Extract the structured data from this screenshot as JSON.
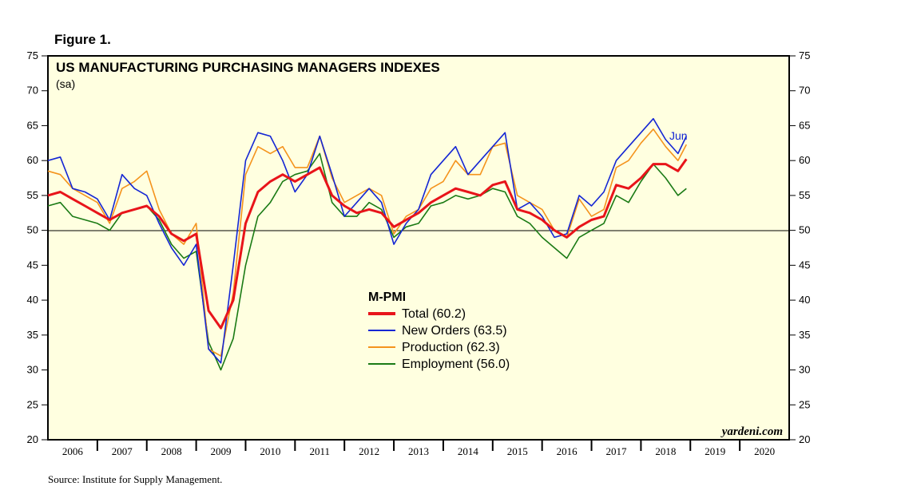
{
  "figure_label": "Figure 1.",
  "source": "Source: Institute for Supply Management.",
  "chart_data": {
    "type": "line",
    "title": "US MANUFACTURING PURCHASING MANAGERS INDEXES",
    "subtitle": "(sa)",
    "watermark": "yardeni.com",
    "end_annotation": "Jun",
    "legend_title": "M-PMI",
    "legend_placement": "center",
    "ylim": [
      20,
      75
    ],
    "yticks": [
      "20",
      "25",
      "30",
      "35",
      "40",
      "45",
      "50",
      "55",
      "60",
      "65",
      "70",
      "75"
    ],
    "xlim": [
      2005.5,
      2020.5
    ],
    "xticks": [
      "2006",
      "2007",
      "2008",
      "2009",
      "2010",
      "2011",
      "2012",
      "2013",
      "2014",
      "2015",
      "2016",
      "2017",
      "2018",
      "2019",
      "2020"
    ],
    "reference_line": 50,
    "grid": false,
    "x": [
      2005.5,
      2005.75,
      2006.0,
      2006.25,
      2006.5,
      2006.75,
      2007.0,
      2007.25,
      2007.5,
      2007.75,
      2008.0,
      2008.25,
      2008.5,
      2008.75,
      2009.0,
      2009.25,
      2009.5,
      2009.75,
      2010.0,
      2010.25,
      2010.5,
      2010.75,
      2011.0,
      2011.25,
      2011.5,
      2011.75,
      2012.0,
      2012.25,
      2012.5,
      2012.75,
      2013.0,
      2013.25,
      2013.5,
      2013.75,
      2014.0,
      2014.25,
      2014.5,
      2014.75,
      2015.0,
      2015.25,
      2015.5,
      2015.75,
      2016.0,
      2016.25,
      2016.5,
      2016.75,
      2017.0,
      2017.25,
      2017.5,
      2017.75,
      2018.0,
      2018.25,
      2018.42
    ],
    "series": [
      {
        "name": "Total",
        "latest": "60.2",
        "color": "#e8141a",
        "values": [
          55.0,
          55.5,
          54.5,
          53.5,
          52.5,
          51.5,
          52.5,
          53.0,
          53.5,
          52.0,
          49.5,
          48.5,
          49.5,
          38.5,
          36.0,
          40.0,
          51.0,
          55.5,
          57.0,
          58.0,
          57.0,
          58.0,
          59.0,
          55.0,
          53.5,
          52.5,
          53.0,
          52.5,
          50.5,
          51.5,
          52.5,
          54.0,
          55.0,
          56.0,
          55.5,
          55.0,
          56.5,
          57.0,
          53.0,
          52.5,
          51.5,
          50.0,
          49.0,
          50.5,
          51.5,
          52.0,
          56.5,
          56.0,
          57.5,
          59.5,
          59.5,
          58.5,
          60.2
        ]
      },
      {
        "name": "New Orders",
        "latest": "63.5",
        "color": "#1426d4",
        "values": [
          60.0,
          60.5,
          56.0,
          55.5,
          54.5,
          51.5,
          58.0,
          56.0,
          55.0,
          51.0,
          47.5,
          45.0,
          48.0,
          33.0,
          31.0,
          45.0,
          60.0,
          64.0,
          63.5,
          60.0,
          55.5,
          58.0,
          63.5,
          58.0,
          52.0,
          54.0,
          56.0,
          54.0,
          48.0,
          51.0,
          53.0,
          58.0,
          60.0,
          62.0,
          58.0,
          60.0,
          62.0,
          64.0,
          53.0,
          54.0,
          52.0,
          49.0,
          49.5,
          55.0,
          53.5,
          55.5,
          60.0,
          62.0,
          64.0,
          66.0,
          63.0,
          61.0,
          63.5
        ]
      },
      {
        "name": "Production",
        "latest": "62.3",
        "color": "#f4931c",
        "values": [
          58.5,
          58.0,
          56.0,
          55.0,
          54.0,
          51.0,
          56.0,
          57.0,
          58.5,
          53.0,
          49.5,
          48.0,
          51.0,
          33.0,
          32.0,
          41.0,
          58.0,
          62.0,
          61.0,
          62.0,
          59.0,
          59.0,
          63.5,
          57.5,
          54.0,
          55.0,
          56.0,
          55.0,
          49.5,
          52.0,
          53.0,
          56.0,
          57.0,
          60.0,
          58.0,
          58.0,
          62.0,
          62.5,
          55.0,
          54.0,
          53.0,
          50.0,
          49.0,
          54.5,
          52.0,
          53.0,
          59.0,
          60.0,
          62.5,
          64.5,
          62.0,
          60.0,
          62.3
        ]
      },
      {
        "name": "Employment",
        "latest": "56.0",
        "color": "#1a7a14",
        "values": [
          53.5,
          54.0,
          52.0,
          51.5,
          51.0,
          50.0,
          52.5,
          53.0,
          53.5,
          51.5,
          48.0,
          46.0,
          47.0,
          34.0,
          30.0,
          34.5,
          45.0,
          52.0,
          54.0,
          57.0,
          58.0,
          58.5,
          61.0,
          54.0,
          52.0,
          52.0,
          54.0,
          53.0,
          49.0,
          50.5,
          51.0,
          53.5,
          54.0,
          55.0,
          54.5,
          55.0,
          56.0,
          55.5,
          52.0,
          51.0,
          49.0,
          47.5,
          46.0,
          49.0,
          50.0,
          51.0,
          55.0,
          54.0,
          57.0,
          59.5,
          57.5,
          55.0,
          56.0
        ]
      }
    ]
  }
}
